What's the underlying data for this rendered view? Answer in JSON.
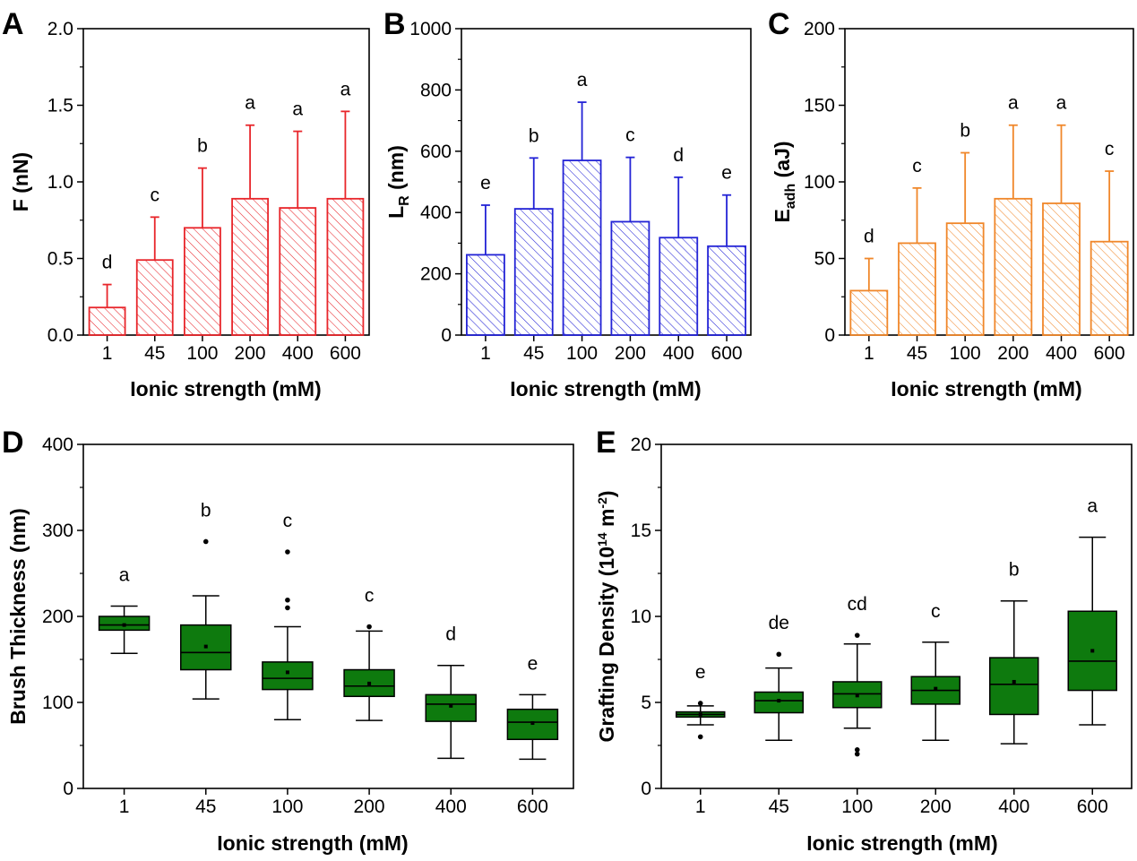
{
  "chart_data": [
    {
      "panel": "A",
      "type": "bar",
      "xlabel": "Ionic strength (mM)",
      "ylabel": "F (nN)",
      "categories": [
        "1",
        "45",
        "100",
        "200",
        "400",
        "600"
      ],
      "values": [
        0.18,
        0.49,
        0.7,
        0.89,
        0.83,
        0.89
      ],
      "errors": [
        0.15,
        0.28,
        0.39,
        0.48,
        0.5,
        0.57
      ],
      "significance": [
        "d",
        "c",
        "b",
        "a",
        "a",
        "a"
      ],
      "ylim": [
        0,
        2.0
      ],
      "yticks": [
        "0.0",
        "0.5",
        "1.0",
        "1.5",
        "2.0"
      ],
      "color": "#e8262b",
      "hatch": true
    },
    {
      "panel": "B",
      "type": "bar",
      "xlabel": "Ionic strength (mM)",
      "ylabel": "L",
      "ylabel_sub": "R",
      "ylabel_tail": " (nm)",
      "categories": [
        "1",
        "45",
        "100",
        "200",
        "400",
        "600"
      ],
      "values": [
        262,
        412,
        570,
        370,
        318,
        290
      ],
      "errors": [
        162,
        166,
        190,
        210,
        197,
        167
      ],
      "significance": [
        "e",
        "b",
        "a",
        "c",
        "d",
        "e"
      ],
      "ylim": [
        0,
        1000
      ],
      "yticks": [
        "0",
        "200",
        "400",
        "600",
        "800",
        "1000"
      ],
      "color": "#2323d6",
      "hatch": true
    },
    {
      "panel": "C",
      "type": "bar",
      "xlabel": "Ionic strength (mM)",
      "ylabel": "E",
      "ylabel_sub": "adh",
      "ylabel_tail": " (aJ)",
      "categories": [
        "1",
        "45",
        "100",
        "200",
        "400",
        "600"
      ],
      "values": [
        29,
        60,
        73,
        89,
        86,
        61
      ],
      "errors": [
        21,
        36,
        46,
        48,
        51,
        46
      ],
      "significance": [
        "d",
        "c",
        "b",
        "a",
        "a",
        "c"
      ],
      "ylim": [
        0,
        200
      ],
      "yticks": [
        "0",
        "50",
        "100",
        "150",
        "200"
      ],
      "color": "#f0872a",
      "hatch": true
    },
    {
      "panel": "D",
      "type": "box",
      "xlabel": "Ionic strength (mM)",
      "ylabel": "Brush Thickness (nm)",
      "categories": [
        "1",
        "45",
        "100",
        "200",
        "400",
        "600"
      ],
      "boxes": [
        {
          "whisker_low": 157,
          "q1": 184,
          "median": 190,
          "q3": 200,
          "whisker_high": 212,
          "mean": 190,
          "outliers": []
        },
        {
          "whisker_low": 104,
          "q1": 138,
          "median": 158,
          "q3": 190,
          "whisker_high": 224,
          "mean": 165,
          "outliers": [
            287
          ]
        },
        {
          "whisker_low": 80,
          "q1": 115,
          "median": 128,
          "q3": 147,
          "whisker_high": 188,
          "mean": 135,
          "outliers": [
            219,
            210,
            275
          ]
        },
        {
          "whisker_low": 79,
          "q1": 107,
          "median": 119,
          "q3": 138,
          "whisker_high": 183,
          "mean": 122,
          "outliers": [
            188
          ]
        },
        {
          "whisker_low": 35,
          "q1": 78,
          "median": 98,
          "q3": 109,
          "whisker_high": 143,
          "mean": 96,
          "outliers": []
        },
        {
          "whisker_low": 34,
          "q1": 57,
          "median": 77,
          "q3": 92,
          "whisker_high": 109,
          "mean": 76,
          "outliers": []
        }
      ],
      "significance": [
        "a",
        "b",
        "c",
        "c",
        "d",
        "e"
      ],
      "ylim": [
        0,
        400
      ],
      "yticks": [
        "0",
        "100",
        "200",
        "300",
        "400"
      ],
      "color": "#0e7a0e"
    },
    {
      "panel": "E",
      "type": "box",
      "xlabel": "Ionic strength (mM)",
      "ylabel": "Grafting Density (10",
      "ylabel_sup": "14",
      "ylabel_mid": " m",
      "ylabel_sup2": "-2",
      "ylabel_tail": ")",
      "categories": [
        "1",
        "45",
        "100",
        "200",
        "400",
        "600"
      ],
      "boxes": [
        {
          "whisker_low": 3.7,
          "q1": 4.15,
          "median": 4.3,
          "q3": 4.45,
          "whisker_high": 4.8,
          "mean": 4.3,
          "outliers": [
            3.0,
            4.95
          ]
        },
        {
          "whisker_low": 2.8,
          "q1": 4.4,
          "median": 5.1,
          "q3": 5.6,
          "whisker_high": 7.0,
          "mean": 5.1,
          "outliers": [
            7.8
          ]
        },
        {
          "whisker_low": 3.5,
          "q1": 4.7,
          "median": 5.5,
          "q3": 6.2,
          "whisker_high": 8.4,
          "mean": 5.4,
          "outliers": [
            2.0,
            2.25,
            8.9
          ]
        },
        {
          "whisker_low": 2.8,
          "q1": 4.9,
          "median": 5.7,
          "q3": 6.5,
          "whisker_high": 8.5,
          "mean": 5.8,
          "outliers": []
        },
        {
          "whisker_low": 2.6,
          "q1": 4.3,
          "median": 6.05,
          "q3": 7.6,
          "whisker_high": 10.9,
          "mean": 6.2,
          "outliers": []
        },
        {
          "whisker_low": 3.7,
          "q1": 5.7,
          "median": 7.4,
          "q3": 10.3,
          "whisker_high": 14.6,
          "mean": 8.0,
          "outliers": []
        }
      ],
      "significance": [
        "e",
        "de",
        "cd",
        "c",
        "b",
        "a"
      ],
      "ylim": [
        0,
        20
      ],
      "yticks": [
        "0",
        "5",
        "10",
        "15",
        "20"
      ],
      "color": "#0e7a0e"
    }
  ]
}
